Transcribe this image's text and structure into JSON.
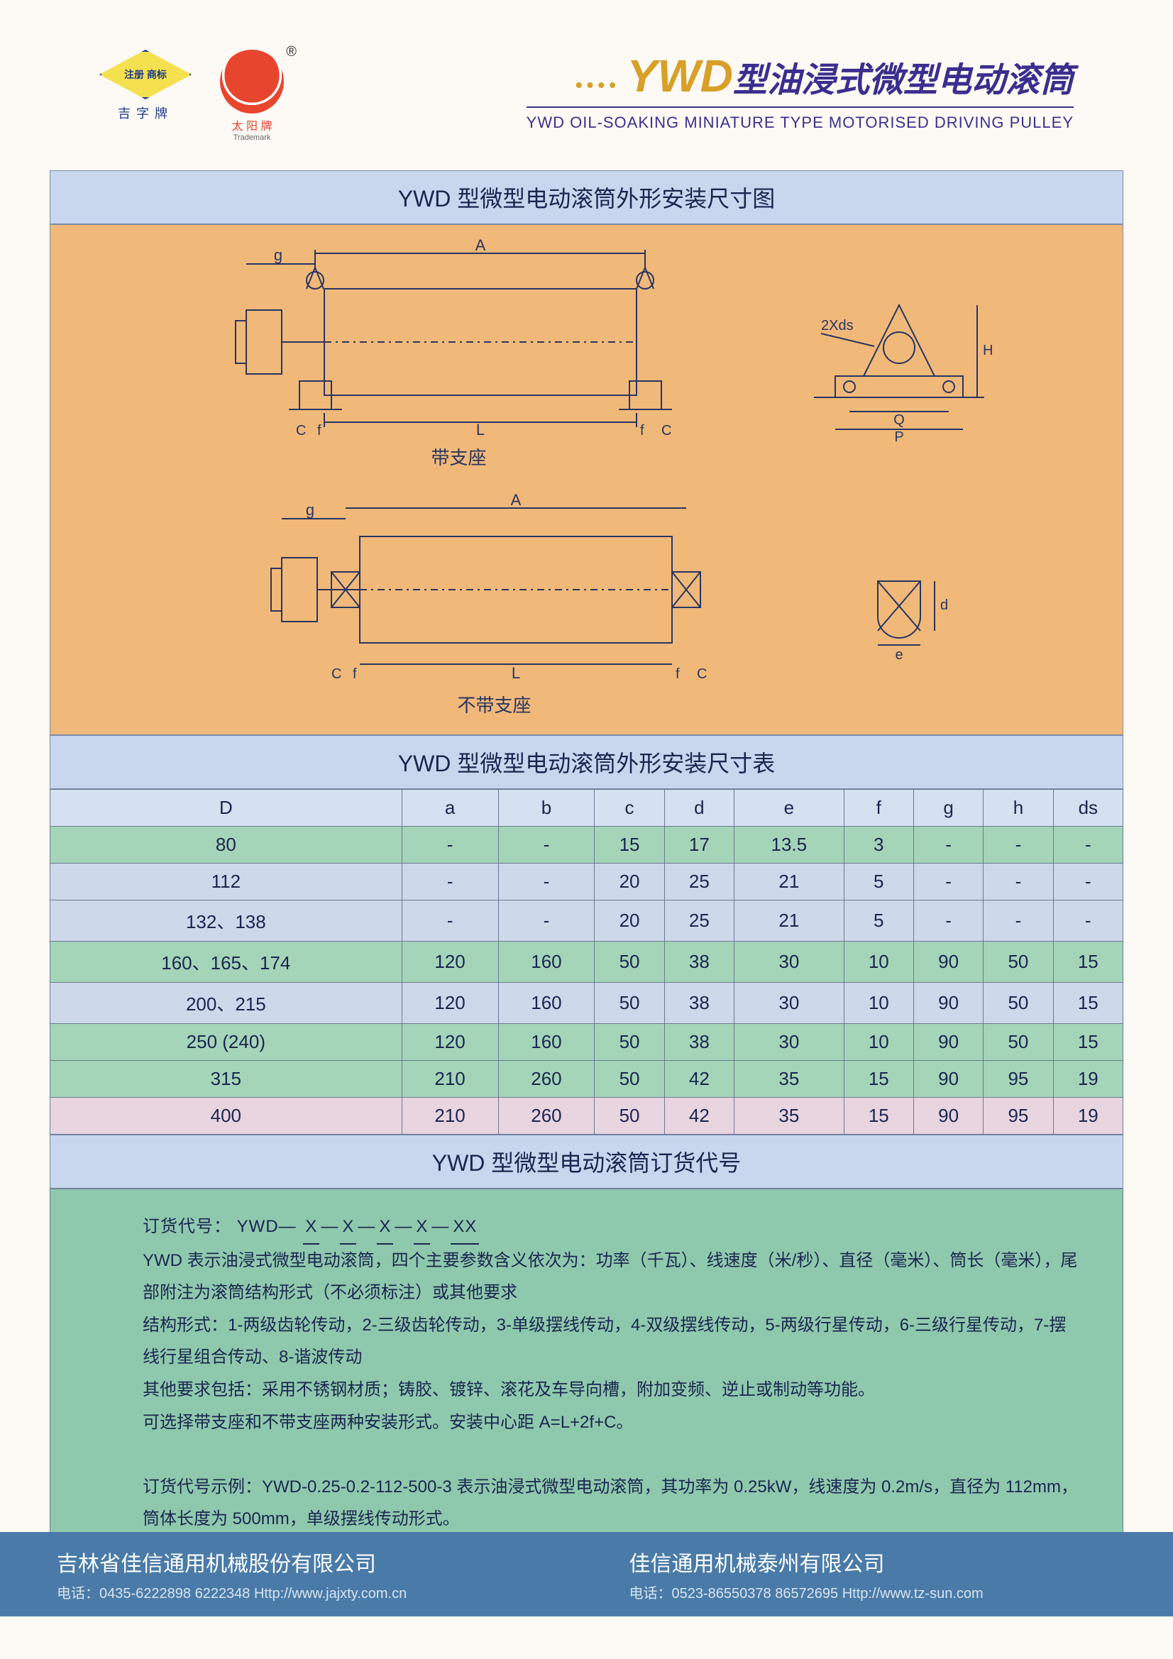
{
  "header": {
    "logo1_inner": "注册 商标",
    "logo1_label": "吉字牌",
    "logo2_label": "太 阳 牌",
    "logo2_sub": "Trademark",
    "ywd": "YWD",
    "title_cn": "型油浸式微型电动滚筒",
    "title_en": "YWD OIL-SOAKING MINIATURE TYPE MOTORISED DRIVING PULLEY"
  },
  "sections": {
    "diagram_title": "YWD 型微型电动滚筒外形安装尺寸图",
    "diagram_label1": "带支座",
    "diagram_label2": "不带支座",
    "table_title": "YWD 型微型电动滚筒外形安装尺寸表",
    "order_title": "YWD 型微型电动滚筒订货代号"
  },
  "diagram": {
    "stroke": "#2a3560",
    "bg": "#f0b97a",
    "dims_main": [
      "g",
      "A",
      "C",
      "f",
      "L",
      "f",
      "C"
    ],
    "dims_side": [
      "2Xds",
      "H",
      "Q",
      "P"
    ],
    "dims_detail": [
      "d",
      "e"
    ]
  },
  "table": {
    "columns": [
      "D",
      "a",
      "b",
      "c",
      "d",
      "e",
      "f",
      "g",
      "h",
      "ds"
    ],
    "rows": [
      {
        "style": "row-green",
        "cells": [
          "80",
          "-",
          "-",
          "15",
          "17",
          "13.5",
          "3",
          "-",
          "-",
          "-"
        ]
      },
      {
        "style": "row-blue",
        "cells": [
          "112",
          "-",
          "-",
          "20",
          "25",
          "21",
          "5",
          "-",
          "-",
          "-"
        ]
      },
      {
        "style": "row-blue",
        "cells": [
          "132、138",
          "-",
          "-",
          "20",
          "25",
          "21",
          "5",
          "-",
          "-",
          "-"
        ]
      },
      {
        "style": "row-green",
        "cells": [
          "160、165、174",
          "120",
          "160",
          "50",
          "38",
          "30",
          "10",
          "90",
          "50",
          "15"
        ]
      },
      {
        "style": "row-blue",
        "cells": [
          "200、215",
          "120",
          "160",
          "50",
          "38",
          "30",
          "10",
          "90",
          "50",
          "15"
        ]
      },
      {
        "style": "row-green",
        "cells": [
          "250 (240)",
          "120",
          "160",
          "50",
          "38",
          "30",
          "10",
          "90",
          "50",
          "15"
        ]
      },
      {
        "style": "row-green",
        "cells": [
          "315",
          "210",
          "260",
          "50",
          "42",
          "35",
          "15",
          "90",
          "95",
          "19"
        ]
      },
      {
        "style": "row-pink",
        "cells": [
          "400",
          "210",
          "260",
          "50",
          "42",
          "35",
          "15",
          "90",
          "95",
          "19"
        ]
      }
    ]
  },
  "order": {
    "line1_label": "订货代号：",
    "line1_code_prefix": "YWD—",
    "line1_slots": [
      "X",
      "X",
      "X",
      "X",
      "XX"
    ],
    "p1": "YWD 表示油浸式微型电动滚筒，四个主要参数含义依次为：功率（千瓦）、线速度（米/秒）、直径（毫米）、筒长（毫米），尾部附注为滚筒结构形式（不必须标注）或其他要求",
    "p2": "结构形式：1-两级齿轮传动，2-三级齿轮传动，3-单级摆线传动，4-双级摆线传动，5-两级行星传动，6-三级行星传动，7-摆线行星组合传动、8-谐波传动",
    "p3": "其他要求包括：采用不锈钢材质；铸胶、镀锌、滚花及车导向槽，附加变频、逆止或制动等功能。",
    "p4": "可选择带支座和不带支座两种安装形式。安装中心距 A=L+2f+C。",
    "p5": "订货代号示例：YWD-0.25-0.2-112-500-3 表示油浸式微型电动滚筒，其功率为 0.25kW，线速度为 0.2m/s，直径为 112mm，筒体长度为 500mm，单级摆线传动形式。"
  },
  "footer": {
    "c1_name": "吉林省佳信通用机械股份有限公司",
    "c1_info": "电话：0435-6222898  6222348  Http://www.jajxty.com.cn",
    "c2_name": "佳信通用机械泰州有限公司",
    "c2_info": "电话：0523-86550378  86572695  Http://www.tz-sun.com"
  },
  "colors": {
    "header_bar": "#c8d7ee",
    "diagram_bg": "#f0b97a",
    "order_bg": "#8fc9ad",
    "footer_bg": "#4a7ba8",
    "stroke": "#2a3560"
  }
}
